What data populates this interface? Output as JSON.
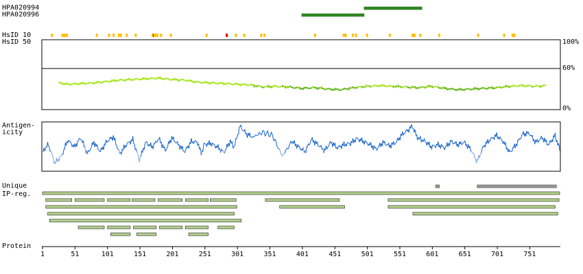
{
  "antibody_labels": [
    "HPA020994",
    "HPA020996"
  ],
  "row_labels": {
    "hsid10": "HsID 10",
    "hsid50": "HsID 50",
    "antigenicity_1": "Antigen-",
    "antigenicity_2": "icity",
    "unique_1": "Unique",
    "unique_2": "IP-reg.",
    "protein": "Protein"
  },
  "colors": {
    "antibody_bar": "#2e8b22",
    "hsid_tick": "#ffc000",
    "hsid_tick_high": "#e00000",
    "identity_light": "#a8e61e",
    "identity_dark": "#66b81a",
    "antigenicity": "#1060c8",
    "antigenicity_low": "#7aa0e0",
    "unique_bar": "#999999",
    "ipreg_bar": "#b5d48c"
  },
  "chart_data": {
    "type": "line",
    "x_axis": {
      "range": [
        1,
        797
      ],
      "tick_labels": [
        "1",
        "51",
        "101",
        "151",
        "201",
        "251",
        "301",
        "351",
        "401",
        "451",
        "501",
        "551",
        "601",
        "651",
        "701",
        "751"
      ]
    },
    "identity_axis": {
      "tick_labels": [
        "100%",
        "60%",
        "0%"
      ],
      "range": [
        0,
        100
      ],
      "reference_line": 60
    },
    "antibodies": [
      {
        "name": "HPA020994",
        "start": 496,
        "end": 585
      },
      {
        "name": "HPA020996",
        "start": 400,
        "end": 496
      }
    ],
    "hsid10_ticks": [
      15,
      31,
      34,
      37,
      38,
      84,
      103,
      110,
      118,
      121,
      130,
      144,
      170,
      171,
      172,
      173,
      174,
      177,
      183,
      198,
      253,
      284,
      298,
      311,
      337,
      342,
      420,
      464,
      465,
      467,
      478,
      483,
      500,
      535,
      570,
      573,
      582,
      611,
      671,
      711,
      724,
      727
    ],
    "hsid10_high": [
      172,
      284
    ],
    "identity_series": [
      [
        26,
        38
      ],
      [
        40,
        36
      ],
      [
        60,
        37
      ],
      [
        80,
        38
      ],
      [
        100,
        40
      ],
      [
        120,
        42
      ],
      [
        140,
        43
      ],
      [
        160,
        44
      ],
      [
        180,
        45
      ],
      [
        200,
        43
      ],
      [
        220,
        42
      ],
      [
        240,
        39
      ],
      [
        260,
        38
      ],
      [
        280,
        37
      ],
      [
        300,
        36
      ],
      [
        320,
        35
      ],
      [
        340,
        32
      ],
      [
        360,
        33
      ],
      [
        380,
        32
      ],
      [
        400,
        30
      ],
      [
        420,
        31
      ],
      [
        440,
        29
      ],
      [
        460,
        28
      ],
      [
        480,
        31
      ],
      [
        500,
        33
      ],
      [
        520,
        34
      ],
      [
        540,
        33
      ],
      [
        560,
        32
      ],
      [
        580,
        31
      ],
      [
        600,
        33
      ],
      [
        620,
        30
      ],
      [
        640,
        28
      ],
      [
        660,
        29
      ],
      [
        680,
        30
      ],
      [
        700,
        31
      ],
      [
        720,
        33
      ],
      [
        740,
        34
      ],
      [
        760,
        33
      ],
      [
        776,
        34
      ]
    ],
    "antigenicity_series": [
      [
        1,
        0.4
      ],
      [
        10,
        0.55
      ],
      [
        20,
        0.15
      ],
      [
        30,
        0.3
      ],
      [
        40,
        0.65
      ],
      [
        50,
        0.5
      ],
      [
        60,
        0.7
      ],
      [
        70,
        0.35
      ],
      [
        80,
        0.6
      ],
      [
        90,
        0.4
      ],
      [
        100,
        0.62
      ],
      [
        110,
        0.72
      ],
      [
        120,
        0.35
      ],
      [
        130,
        0.55
      ],
      [
        140,
        0.66
      ],
      [
        150,
        0.22
      ],
      [
        160,
        0.6
      ],
      [
        170,
        0.5
      ],
      [
        180,
        0.68
      ],
      [
        190,
        0.42
      ],
      [
        200,
        0.7
      ],
      [
        210,
        0.55
      ],
      [
        220,
        0.4
      ],
      [
        230,
        0.62
      ],
      [
        240,
        0.6
      ],
      [
        245,
        0.35
      ],
      [
        250,
        0.55
      ],
      [
        260,
        0.58
      ],
      [
        270,
        0.5
      ],
      [
        280,
        0.38
      ],
      [
        290,
        0.62
      ],
      [
        296,
        0.5
      ],
      [
        305,
        0.95
      ],
      [
        315,
        0.78
      ],
      [
        325,
        0.72
      ],
      [
        340,
        0.82
      ],
      [
        355,
        0.75
      ],
      [
        370,
        0.3
      ],
      [
        385,
        0.62
      ],
      [
        395,
        0.5
      ],
      [
        405,
        0.4
      ],
      [
        415,
        0.66
      ],
      [
        425,
        0.55
      ],
      [
        435,
        0.42
      ],
      [
        445,
        0.6
      ],
      [
        455,
        0.48
      ],
      [
        465,
        0.55
      ],
      [
        475,
        0.58
      ],
      [
        485,
        0.68
      ],
      [
        495,
        0.62
      ],
      [
        505,
        0.55
      ],
      [
        515,
        0.45
      ],
      [
        525,
        0.6
      ],
      [
        535,
        0.52
      ],
      [
        545,
        0.6
      ],
      [
        555,
        0.78
      ],
      [
        565,
        0.88
      ],
      [
        570,
        0.96
      ],
      [
        578,
        0.7
      ],
      [
        590,
        0.62
      ],
      [
        600,
        0.5
      ],
      [
        610,
        0.55
      ],
      [
        620,
        0.48
      ],
      [
        630,
        0.62
      ],
      [
        640,
        0.55
      ],
      [
        650,
        0.6
      ],
      [
        660,
        0.45
      ],
      [
        670,
        0.18
      ],
      [
        680,
        0.52
      ],
      [
        690,
        0.66
      ],
      [
        700,
        0.75
      ],
      [
        710,
        0.62
      ],
      [
        720,
        0.38
      ],
      [
        730,
        0.55
      ],
      [
        740,
        0.78
      ],
      [
        750,
        0.8
      ],
      [
        760,
        0.6
      ],
      [
        770,
        0.7
      ],
      [
        780,
        0.55
      ],
      [
        790,
        0.75
      ],
      [
        797,
        0.45
      ]
    ],
    "antigenicity_range": [
      0,
      1
    ],
    "unique_regions": [
      [
        606,
        612
      ],
      [
        670,
        792
      ]
    ],
    "ipreg_rows": [
      [
        [
          1,
          797
        ]
      ],
      [
        [
          6,
          46
        ],
        [
          51,
          96
        ],
        [
          101,
          136
        ],
        [
          139,
          174
        ],
        [
          179,
          216
        ],
        [
          221,
          256
        ],
        [
          259,
          299
        ],
        [
          344,
          458
        ],
        [
          533,
          796
        ]
      ],
      [
        [
          6,
          300
        ],
        [
          366,
          466
        ],
        [
          533,
          790
        ]
      ],
      [
        [
          9,
          296
        ],
        [
          571,
          794
        ]
      ],
      [
        [
          12,
          307
        ]
      ],
      [
        [
          56,
          96
        ],
        [
          101,
          136
        ],
        [
          141,
          176
        ],
        [
          181,
          216
        ],
        [
          221,
          256
        ],
        [
          271,
          296
        ]
      ],
      [
        [
          106,
          136
        ],
        [
          146,
          176
        ],
        [
          226,
          256
        ]
      ]
    ]
  }
}
